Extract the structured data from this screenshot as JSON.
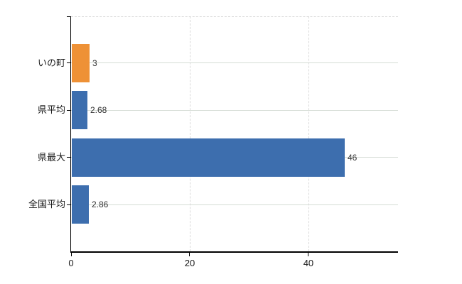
{
  "chart_data": {
    "type": "bar",
    "orientation": "horizontal",
    "title": "",
    "xlabel": "",
    "ylabel": "",
    "categories": [
      "いの町",
      "県平均",
      "県最大",
      "全国平均"
    ],
    "values": [
      3,
      2.68,
      46,
      2.86
    ],
    "value_labels": [
      "3",
      "2.68",
      "46",
      "2.86"
    ],
    "bar_colors": [
      "#EE9136",
      "#3D6EAE",
      "#3D6EAE",
      "#3D6EAE"
    ],
    "x_ticks": [
      0,
      20,
      40
    ],
    "x_tick_labels": [
      "0",
      "20",
      "40"
    ],
    "xlim": [
      0,
      55.1
    ],
    "grid": true,
    "legend": false,
    "style": {
      "background": "#ffffff",
      "axis_color": "#000000",
      "h_gridline_color": "#d6dcd6",
      "dashed_gridline_color": "#d9d9d9",
      "category_label_color": "#1a1a1a",
      "value_label_color": "#333333",
      "tick_label_color": "#1a1a1a"
    }
  }
}
